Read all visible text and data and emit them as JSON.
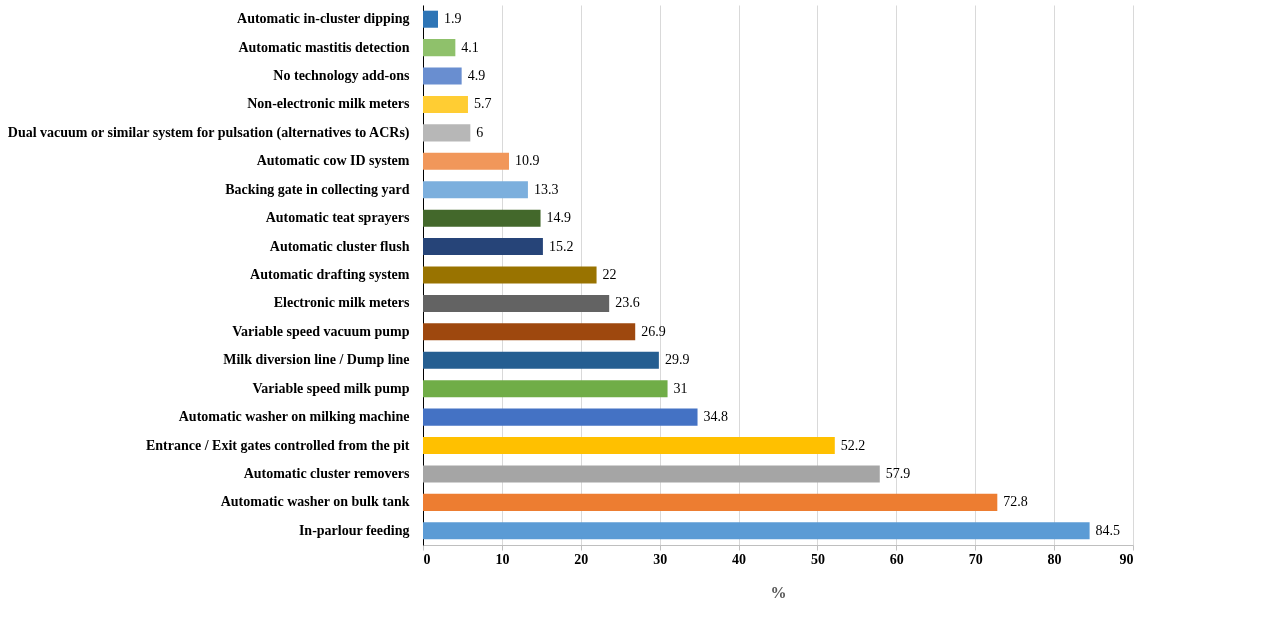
{
  "chart_data": {
    "type": "bar",
    "orientation": "horizontal",
    "xlabel": "%",
    "categories": [
      "Automatic in-cluster dipping",
      "Automatic mastitis detection",
      "No technology add-ons",
      "Non-electronic milk meters",
      "Dual vacuum or similar system for pulsation (alternatives to ACRs)",
      "Automatic cow ID system",
      "Backing gate in collecting yard",
      "Automatic teat sprayers",
      "Automatic cluster flush",
      "Automatic drafting system",
      "Electronic milk meters",
      "Variable speed vacuum pump",
      "Milk diversion line / Dump line",
      "Variable speed milk pump",
      "Automatic washer on milking machine",
      "Entrance / Exit gates controlled from the pit",
      "Automatic cluster removers",
      "Automatic washer on bulk tank",
      "In-parlour feeding"
    ],
    "values": [
      1.9,
      4.1,
      4.9,
      5.7,
      6,
      10.9,
      13.3,
      14.9,
      15.2,
      22,
      23.6,
      26.9,
      29.9,
      31,
      34.8,
      52.2,
      57.9,
      72.8,
      84.5
    ],
    "colors": [
      "#2e75b6",
      "#8fc16b",
      "#698ed0",
      "#ffcd33",
      "#b7b7b7",
      "#f1975a",
      "#7cafdd",
      "#43682b",
      "#264478",
      "#997300",
      "#636363",
      "#9e480e",
      "#255e91",
      "#70ad47",
      "#4472c4",
      "#ffc000",
      "#a5a5a5",
      "#ed7d31",
      "#5b9bd5"
    ],
    "xlim": [
      0,
      90
    ],
    "xticks": [
      0,
      10,
      20,
      30,
      40,
      50,
      60,
      70,
      80,
      90
    ],
    "grid": "x",
    "data_labels": true,
    "legend": false
  }
}
